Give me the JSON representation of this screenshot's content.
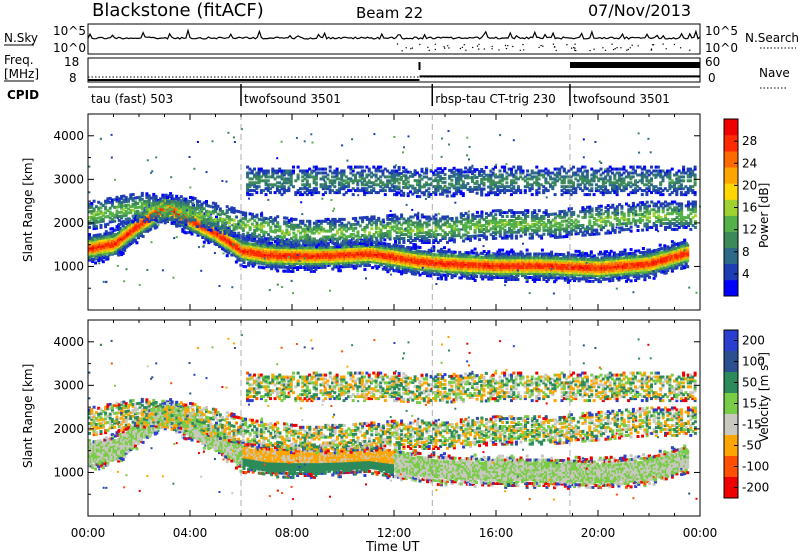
{
  "header": {
    "title": "Blackstone (fitACF)",
    "beam": "Beam 22",
    "date": "07/Nov/2013"
  },
  "top_panel": {
    "nsky_label": "N.Sky",
    "nsky_ticks": [
      "10^5",
      "10^0"
    ],
    "nsearch_label": "N.Search",
    "freq_label_1": "Freq.",
    "freq_label_2": "[MHz]",
    "freq_ticks": [
      "18",
      "8"
    ],
    "nave_label": "Nave",
    "nave_ticks": [
      "60",
      "0"
    ],
    "cpid_label": "CPID",
    "cpid_segments": [
      {
        "label": "tau (fast) 503",
        "start_hour": 0.0,
        "end_hour": 6.0
      },
      {
        "label": "twofsound 3501",
        "start_hour": 6.0,
        "end_hour": 13.5
      },
      {
        "label": "rbsp-tau CT-trig 230",
        "start_hour": 13.5,
        "end_hour": 18.9
      },
      {
        "label": "twofsound 3501",
        "start_hour": 18.9,
        "end_hour": 24.0
      }
    ],
    "frequency_steps_mhz": [
      {
        "start_hour": 0.0,
        "end_hour": 13.0,
        "value": 10.5
      },
      {
        "start_hour": 13.0,
        "end_hour": 24.0,
        "value": 12.0
      }
    ]
  },
  "chart_data": [
    {
      "type": "heatmap",
      "name": "power",
      "xlabel": "Time UT",
      "ylabel": "Slant Range [km]",
      "xlim": [
        0,
        24
      ],
      "ylim": [
        0,
        4500
      ],
      "x_ticks": [
        "00:00",
        "04:00",
        "08:00",
        "12:00",
        "16:00",
        "20:00",
        "00:00"
      ],
      "y_ticks": [
        1000,
        2000,
        3000,
        4000
      ],
      "colorbar": {
        "label": "Power [dB]",
        "ticks": [
          4,
          8,
          12,
          16,
          20,
          24,
          28
        ],
        "range": [
          0,
          32
        ]
      },
      "echo_bands": [
        {
          "hours": [
            0.0,
            1.0,
            2.0,
            3.0,
            4.0,
            5.0,
            6.0,
            7.0,
            8.0,
            9.0,
            10.0,
            11.0,
            12.0,
            13.0,
            14.0,
            16.0,
            18.0,
            20.0,
            22.0,
            23.5
          ],
          "center_km": [
            1450,
            1550,
            2000,
            2400,
            2100,
            1800,
            1400,
            1300,
            1280,
            1280,
            1300,
            1330,
            1250,
            1150,
            1100,
            1050,
            1050,
            1000,
            1100,
            1350
          ],
          "peak_db": 28
        },
        {
          "hours": [
            0.0,
            2.0,
            4.0,
            6.0,
            8.0,
            10.0,
            12.0,
            14.0,
            16.0,
            18.0,
            20.0,
            22.0,
            23.8
          ],
          "center_km": [
            2200,
            2400,
            2300,
            2000,
            1800,
            1800,
            1900,
            1900,
            2000,
            2000,
            2100,
            2200,
            2200
          ],
          "peak_db": 14
        },
        {
          "hours": [
            6.2,
            8.0,
            10.0,
            12.0,
            13.0,
            16.0,
            20.0,
            23.8
          ],
          "center_km": [
            3000,
            3000,
            3000,
            3000,
            2950,
            3000,
            3000,
            3000
          ],
          "peak_db": 10
        }
      ]
    },
    {
      "type": "heatmap",
      "name": "velocity",
      "xlabel": "Time UT",
      "ylabel": "Slant Range [km]",
      "xlim": [
        0,
        24
      ],
      "ylim": [
        0,
        4500
      ],
      "x_ticks": [
        "00:00",
        "04:00",
        "08:00",
        "12:00",
        "16:00",
        "20:00",
        "00:00"
      ],
      "y_ticks": [
        1000,
        2000,
        3000,
        4000
      ],
      "colorbar": {
        "label": "Velocity [m s^-1]",
        "ticks": [
          200,
          100,
          50,
          15,
          -15,
          -50,
          -100,
          -200
        ],
        "range": [
          -250,
          250
        ]
      }
    }
  ],
  "colors": {
    "power_scale": [
      "#0000ff",
      "#1e3cb4",
      "#2d6a87",
      "#3c8a5a",
      "#54b048",
      "#9fd22e",
      "#ffd700",
      "#ffa500",
      "#ff6a00",
      "#ff2a00",
      "#ee0000"
    ],
    "velocity_scale": [
      "#2a3fd0",
      "#2a5090",
      "#2d8a5a",
      "#78cc46",
      "#c8c8c0",
      "#ffa500",
      "#ff5000",
      "#ee0000"
    ],
    "ground_scatter": "#c0c0b8"
  }
}
